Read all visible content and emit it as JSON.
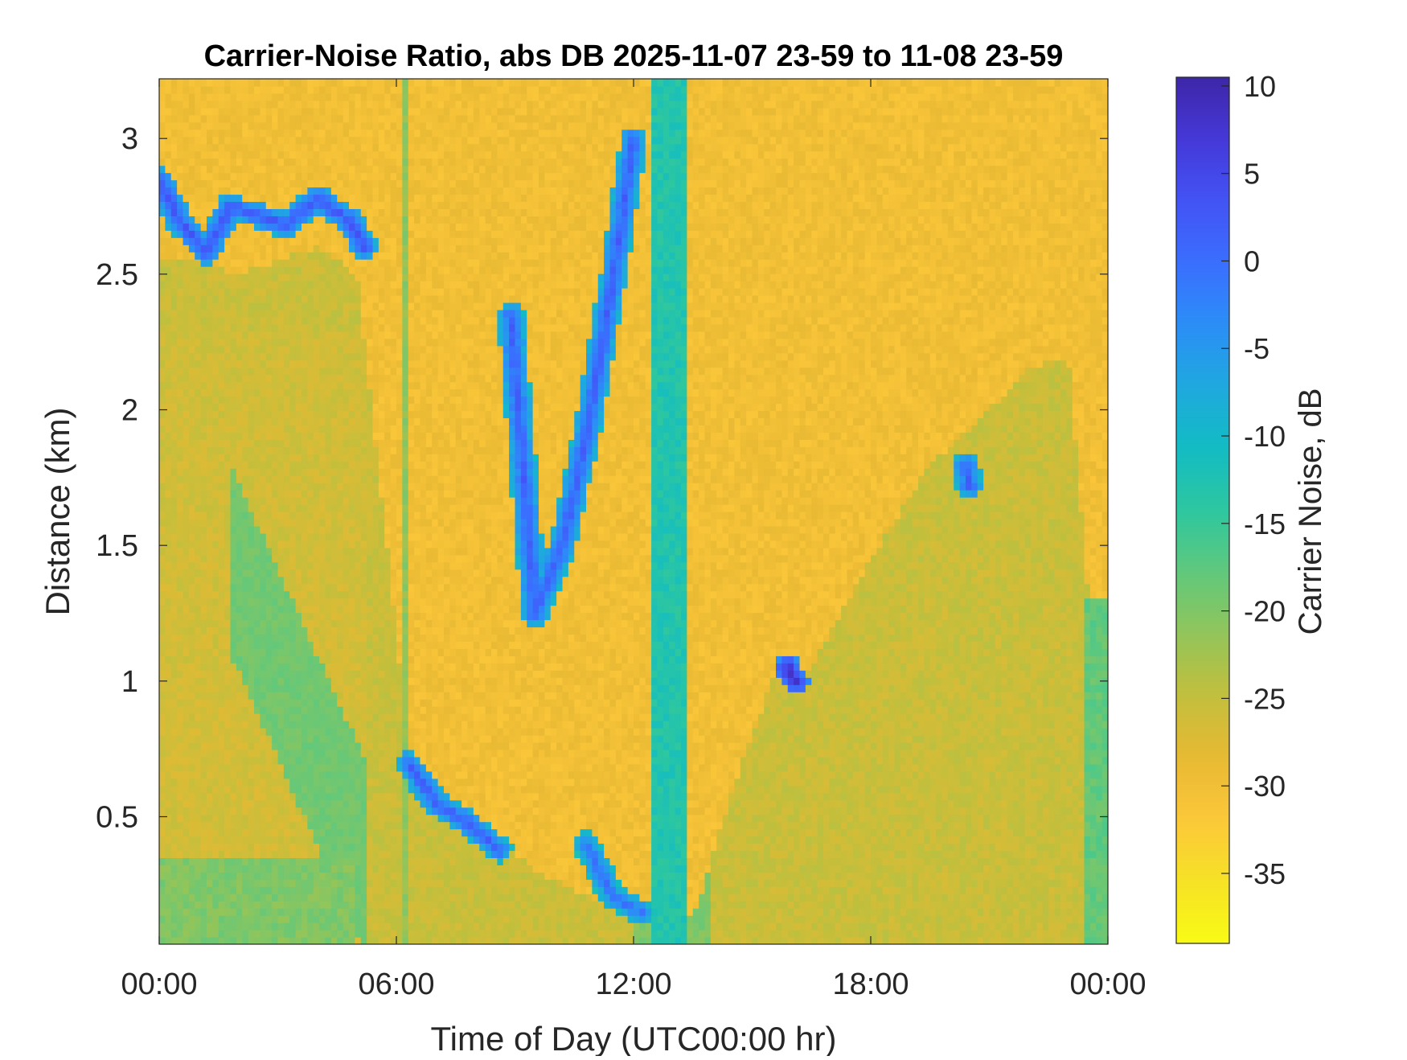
{
  "chart_data": {
    "type": "heatmap",
    "title": "Carrier-Noise Ratio, abs DB 2025-11-07 23-59 to 11-08 23-59",
    "xlabel": "Time of Day (UTC00:00 hr)",
    "ylabel": "Distance (km)",
    "colorbar_label": "Carrier Noise, dB",
    "xlim_hours": [
      0,
      24
    ],
    "ylim_km": [
      0.03,
      3.22
    ],
    "clim_db": [
      -39,
      10.5
    ],
    "x_ticks": [
      {
        "value": 0,
        "label": "00:00"
      },
      {
        "value": 6,
        "label": "06:00"
      },
      {
        "value": 12,
        "label": "12:00"
      },
      {
        "value": 18,
        "label": "18:00"
      },
      {
        "value": 24,
        "label": "00:00"
      }
    ],
    "y_ticks": [
      {
        "value": 0.5,
        "label": "0.5"
      },
      {
        "value": 1,
        "label": "1"
      },
      {
        "value": 1.5,
        "label": "1.5"
      },
      {
        "value": 2,
        "label": "2"
      },
      {
        "value": 2.5,
        "label": "2.5"
      },
      {
        "value": 3,
        "label": "3"
      }
    ],
    "colorbar_ticks": [
      {
        "value": 10,
        "label": "10"
      },
      {
        "value": 5,
        "label": "5"
      },
      {
        "value": 0,
        "label": "0"
      },
      {
        "value": -5,
        "label": "-5"
      },
      {
        "value": -10,
        "label": "-10"
      },
      {
        "value": -15,
        "label": "-15"
      },
      {
        "value": -20,
        "label": "-20"
      },
      {
        "value": -25,
        "label": "-25"
      },
      {
        "value": -30,
        "label": "-30"
      },
      {
        "value": -35,
        "label": "-35"
      }
    ],
    "colormap": [
      "#3e26a8",
      "#4538d7",
      "#4353f5",
      "#3a6efe",
      "#2b8ef7",
      "#1fa9de",
      "#12bcc3",
      "#2dc7a0",
      "#60c87c",
      "#93c55a",
      "#c2bf3c",
      "#e8b933",
      "#fcc73a",
      "#f6e226",
      "#f9fb15"
    ],
    "background_db": -30,
    "features": {
      "aerosol_layer_top_km": [
        [
          0,
          2.55
        ],
        [
          1,
          2.55
        ],
        [
          2,
          2.5
        ],
        [
          3,
          2.55
        ],
        [
          4,
          2.6
        ],
        [
          5,
          2.5
        ],
        [
          5.8,
          1.45
        ],
        [
          6.3,
          0.75
        ],
        [
          7,
          0.62
        ],
        [
          8,
          0.5
        ],
        [
          9.5,
          0.3
        ],
        [
          11,
          0.2
        ],
        [
          12,
          0.2
        ],
        [
          13.5,
          0.12
        ],
        [
          14.5,
          0.6
        ],
        [
          15.5,
          1.0
        ],
        [
          16.5,
          1.05
        ],
        [
          18,
          1.45
        ],
        [
          19.5,
          1.8
        ],
        [
          21,
          2.0
        ],
        [
          22,
          2.15
        ],
        [
          23,
          2.2
        ],
        [
          24,
          0.45
        ]
      ],
      "cloud_streaks": [
        {
          "points": [
            [
              0,
              2.85
            ],
            [
              0.5,
              2.7
            ],
            [
              1.2,
              2.58
            ],
            [
              1.8,
              2.75
            ],
            [
              2.5,
              2.72
            ],
            [
              3.2,
              2.68
            ],
            [
              4,
              2.78
            ],
            [
              4.8,
              2.7
            ],
            [
              5.2,
              2.6
            ]
          ],
          "db": 3
        },
        {
          "points": [
            [
              8.9,
              2.35
            ],
            [
              9.5,
              1.25
            ],
            [
              10.2,
              1.5
            ],
            [
              10.8,
              1.9
            ],
            [
              11.5,
              2.5
            ],
            [
              12,
              3.0
            ]
          ],
          "db": 2
        },
        {
          "points": [
            [
              6.3,
              0.7
            ],
            [
              7,
              0.55
            ],
            [
              7.8,
              0.48
            ],
            [
              8.6,
              0.38
            ]
          ],
          "db": 2
        },
        {
          "points": [
            [
              10.8,
              0.4
            ],
            [
              11.5,
              0.2
            ],
            [
              12.2,
              0.15
            ]
          ],
          "db": 0
        },
        {
          "points": [
            [
              15.9,
              1.05
            ],
            [
              16.1,
              1.0
            ]
          ],
          "db": 8
        },
        {
          "points": [
            [
              20.4,
              1.8
            ],
            [
              20.5,
              1.72
            ]
          ],
          "db": 2
        }
      ],
      "precip_columns": [
        {
          "from_hour": 12.4,
          "to_hour": 13.4,
          "db": -13
        },
        {
          "from_hour": 6.15,
          "to_hour": 6.3,
          "db": -21
        }
      ]
    }
  }
}
